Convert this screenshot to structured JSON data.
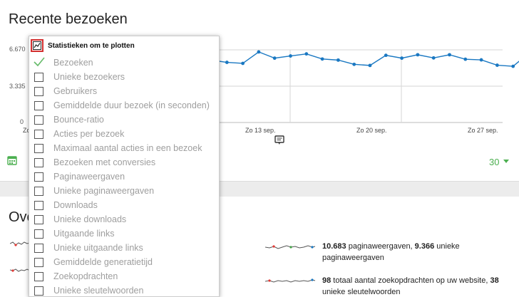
{
  "visits_card": {
    "title": "Recente bezoeken",
    "y_ticks": [
      "6.670",
      "3.335",
      "0"
    ],
    "x_ticks": [
      "Zo",
      "Zo 13 sep.",
      "Zo 20 sep.",
      "Zo 27 sep."
    ],
    "period_value": "30",
    "accent_color": "#1a78c2"
  },
  "chart_data": {
    "type": "line",
    "ylim": [
      0,
      6670
    ],
    "y_tick_labels": [
      "0",
      "3.335",
      "6.670"
    ],
    "x_tick_labels": [
      "Zo",
      "Zo 13 sep.",
      "Zo 20 sep.",
      "Zo 27 sep."
    ],
    "series": [
      {
        "values": [
          5730,
          5520,
          5430,
          6480,
          5910,
          6110,
          6300,
          5830,
          5730,
          5340,
          5240,
          6170,
          5910,
          6220,
          5930,
          6220,
          5810,
          5750,
          5260,
          5160,
          6370,
          6010
        ]
      }
    ]
  },
  "dropdown": {
    "header_label": "Statistieken om te plotten",
    "items": [
      {
        "label": "Bezoeken",
        "checked": true
      },
      {
        "label": "Unieke bezoekers",
        "checked": false
      },
      {
        "label": "Gebruikers",
        "checked": false
      },
      {
        "label": "Gemiddelde duur bezoek (in seconden)",
        "checked": false
      },
      {
        "label": "Bounce-ratio",
        "checked": false
      },
      {
        "label": "Acties per bezoek",
        "checked": false
      },
      {
        "label": "Maximaal aantal acties in een bezoek",
        "checked": false
      },
      {
        "label": "Bezoeken met conversies",
        "checked": false
      },
      {
        "label": "Paginaweergaven",
        "checked": false
      },
      {
        "label": "Unieke paginaweergaven",
        "checked": false
      },
      {
        "label": "Downloads",
        "checked": false
      },
      {
        "label": "Unieke downloads",
        "checked": false
      },
      {
        "label": "Uitgaande links",
        "checked": false
      },
      {
        "label": "Unieke uitgaande links",
        "checked": false
      },
      {
        "label": "Gemiddelde generatietijd",
        "checked": false
      },
      {
        "label": "Zoekopdrachten",
        "checked": false
      },
      {
        "label": "Unieke sleutelwoorden",
        "checked": false
      }
    ]
  },
  "overview_card": {
    "title": "Ove",
    "pageviews": {
      "count": "10.683",
      "count_label": " paginaweergaven, ",
      "unique": "9.366",
      "unique_label": " unieke paginaweergaven"
    },
    "searches": {
      "count": "98",
      "count_label": " totaal aantal zoekopdrachten op uw website, ",
      "unique": "38",
      "unique_label": " unieke sleutelwoorden"
    }
  }
}
